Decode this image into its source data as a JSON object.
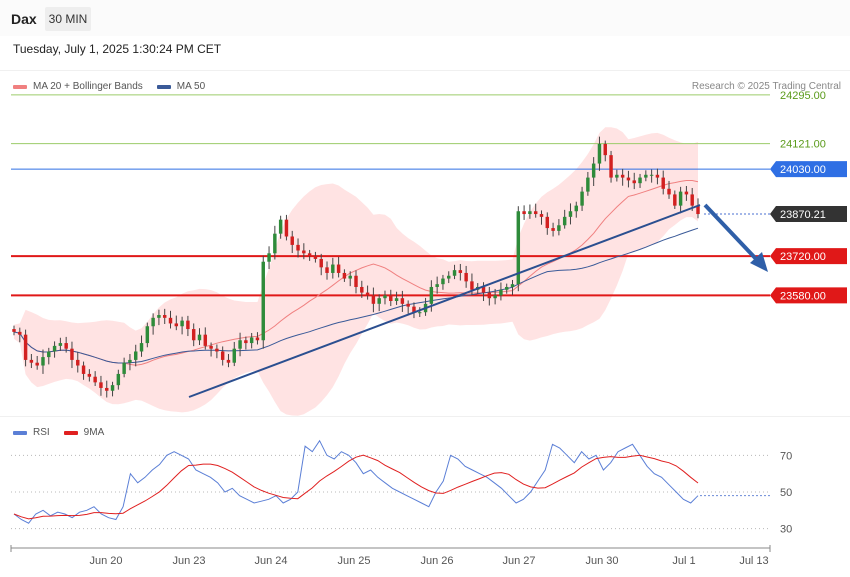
{
  "header": {
    "symbol": "Dax",
    "timeframe": "30 MIN",
    "datetime": "Tuesday, July 1, 2025 1:30:24 PM CET"
  },
  "legend_main": [
    {
      "label": "MA 20 + Bollinger Bands",
      "color": "#f08080"
    },
    {
      "label": "MA 50",
      "color": "#3a5a98"
    }
  ],
  "credit": "Research © 2025 Trading Central",
  "legend_rsi": [
    {
      "label": "RSI",
      "color": "#5b7fd6"
    },
    {
      "label": "9MA",
      "color": "#e02020"
    }
  ],
  "chart_data": [
    {
      "type": "candlestick",
      "title": "",
      "x_axis_labels": [
        "Jun 20",
        "Jun 23",
        "Jun 24",
        "Jun 25",
        "Jun 26",
        "Jun 27",
        "Jun 30",
        "Jul 1",
        "Jul 13"
      ],
      "ylim": [
        23150,
        24380
      ],
      "levels": [
        {
          "value": 24295.0,
          "label": "24295.00",
          "kind": "resistance",
          "color": "#9ccc6a"
        },
        {
          "value": 24121.0,
          "label": "24121.00",
          "kind": "resistance",
          "color": "#9ccc6a"
        },
        {
          "value": 24030.0,
          "label": "24030.00",
          "kind": "pivot",
          "color": "#2f6fe4"
        },
        {
          "value": 23870.21,
          "label": "23870.21",
          "kind": "last",
          "color": "#333333"
        },
        {
          "value": 23720.0,
          "label": "23720.00",
          "kind": "support",
          "color": "#e01818"
        },
        {
          "value": 23580.0,
          "label": "23580.00",
          "kind": "support",
          "color": "#e01818"
        }
      ],
      "closes": [
        23450,
        23440,
        23350,
        23340,
        23330,
        23360,
        23380,
        23400,
        23410,
        23390,
        23350,
        23330,
        23300,
        23290,
        23270,
        23250,
        23240,
        23260,
        23300,
        23340,
        23350,
        23380,
        23410,
        23470,
        23500,
        23510,
        23500,
        23480,
        23470,
        23490,
        23460,
        23420,
        23440,
        23400,
        23390,
        23380,
        23350,
        23340,
        23390,
        23420,
        23410,
        23430,
        23420,
        23700,
        23730,
        23800,
        23850,
        23790,
        23760,
        23740,
        23730,
        23720,
        23710,
        23680,
        23660,
        23690,
        23660,
        23640,
        23650,
        23610,
        23590,
        23580,
        23550,
        23570,
        23580,
        23560,
        23570,
        23550,
        23540,
        23520,
        23520,
        23550,
        23610,
        23620,
        23640,
        23650,
        23670,
        23660,
        23630,
        23600,
        23610,
        23590,
        23570,
        23580,
        23600,
        23610,
        23620,
        23880,
        23870,
        23880,
        23870,
        23860,
        23820,
        23810,
        23830,
        23860,
        23880,
        23900,
        23950,
        24000,
        24050,
        24120,
        24080,
        24000,
        24010,
        24000,
        23990,
        23980,
        24000,
        24010,
        24010,
        24000,
        23960,
        23940,
        23900,
        23950,
        23940,
        23900,
        23870
      ]
    },
    {
      "type": "line",
      "title": "",
      "series": [
        {
          "name": "RSI"
        },
        {
          "name": "9MA"
        }
      ],
      "ylim": [
        20,
        80
      ],
      "yticks": [
        70,
        50,
        30
      ],
      "y_tick_labels": [
        "70",
        "50",
        "30"
      ],
      "rsi_values": [
        38,
        35,
        33,
        38,
        40,
        37,
        39,
        38,
        36,
        39,
        40,
        42,
        38,
        36,
        35,
        42,
        60,
        55,
        58,
        62,
        65,
        70,
        72,
        70,
        68,
        62,
        60,
        58,
        55,
        50,
        52,
        48,
        46,
        44,
        45,
        46,
        48,
        44,
        46,
        50,
        75,
        72,
        78,
        70,
        68,
        72,
        70,
        66,
        60,
        62,
        58,
        55,
        52,
        50,
        48,
        46,
        44,
        42,
        50,
        56,
        70,
        68,
        64,
        62,
        60,
        58,
        55,
        52,
        48,
        44,
        46,
        50,
        56,
        62,
        76,
        74,
        70,
        66,
        72,
        68,
        70,
        62,
        66,
        72,
        74,
        76,
        70,
        64,
        60,
        58,
        54,
        50,
        46,
        44,
        48
      ]
    }
  ]
}
